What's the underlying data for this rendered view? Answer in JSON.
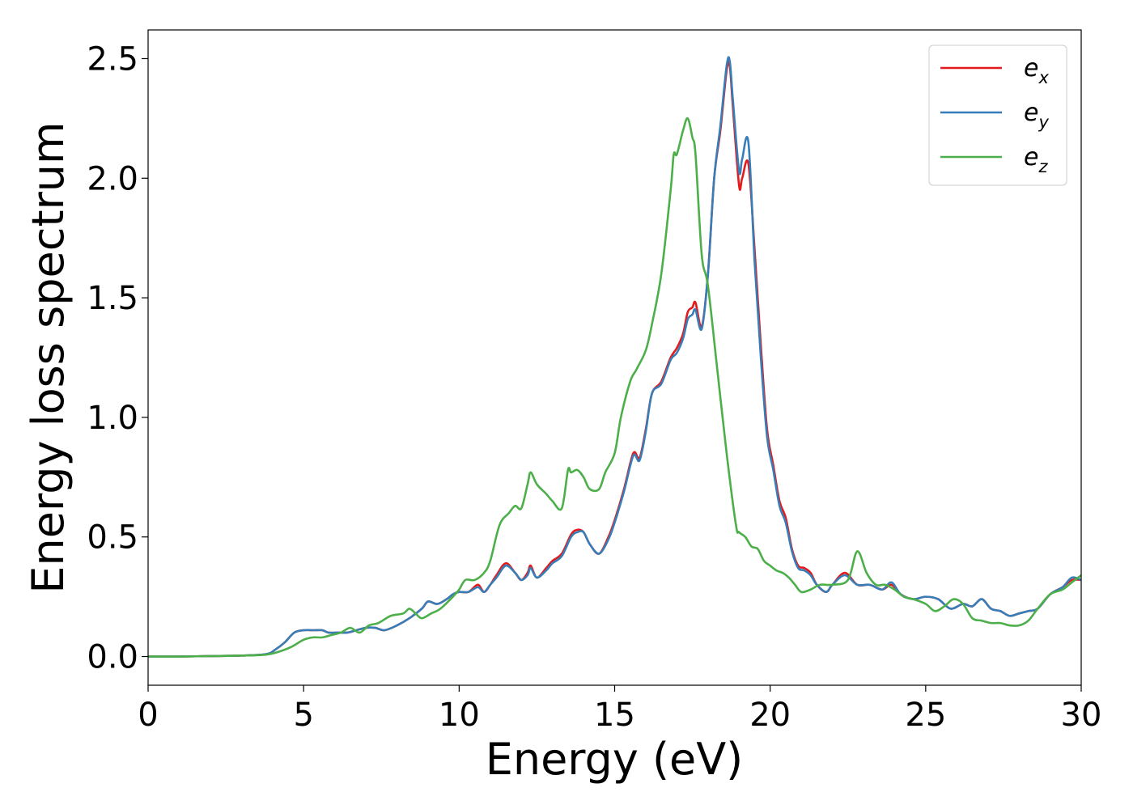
{
  "chart_data": {
    "type": "line",
    "xlabel": "Energy (eV)",
    "ylabel": "Energy loss spectrum",
    "xlim": [
      0,
      30
    ],
    "ylim": [
      -0.12,
      2.62
    ],
    "xticks": [
      0,
      5,
      10,
      15,
      20,
      25,
      30
    ],
    "yticks": [
      0.0,
      0.5,
      1.0,
      1.5,
      2.0,
      2.5
    ],
    "xtick_labels": [
      "0",
      "5",
      "10",
      "15",
      "20",
      "25",
      "30"
    ],
    "ytick_labels": [
      "0.0",
      "0.5",
      "1.0",
      "1.5",
      "2.0",
      "2.5"
    ],
    "grid": false,
    "legend_position": "top-right",
    "series": [
      {
        "name": "e_x",
        "label_main": "e",
        "label_sub": "x",
        "color": "#e41a1c",
        "x": [
          0,
          1,
          2,
          3,
          3.8,
          4.1,
          4.4,
          4.7,
          5.0,
          5.3,
          5.6,
          5.8,
          6.1,
          6.4,
          6.7,
          7.0,
          7.3,
          7.6,
          8.0,
          8.4,
          8.8,
          9.0,
          9.3,
          9.6,
          9.8,
          10.0,
          10.3,
          10.6,
          10.8,
          11.0,
          11.2,
          11.5,
          11.8,
          12.0,
          12.2,
          12.3,
          12.5,
          12.8,
          13.0,
          13.3,
          13.6,
          13.8,
          14.0,
          14.2,
          14.5,
          14.8,
          15.0,
          15.3,
          15.6,
          15.8,
          16.0,
          16.2,
          16.5,
          16.8,
          17.0,
          17.2,
          17.35,
          17.5,
          17.6,
          17.8,
          18.0,
          18.2,
          18.4,
          18.6,
          18.7,
          18.8,
          19.0,
          19.1,
          19.3,
          19.5,
          19.7,
          19.9,
          20.1,
          20.3,
          20.5,
          20.7,
          20.9,
          21.1,
          21.3,
          21.5,
          21.8,
          22.0,
          22.4,
          22.8,
          23.2,
          23.6,
          23.9,
          24.2,
          24.6,
          25.0,
          25.4,
          25.8,
          26.2,
          26.5,
          26.8,
          27.1,
          27.4,
          27.7,
          28.0,
          28.3,
          28.6,
          29.0,
          29.4,
          29.7,
          30.0
        ],
        "y": [
          0.0,
          0.0,
          0.002,
          0.004,
          0.01,
          0.03,
          0.06,
          0.1,
          0.11,
          0.11,
          0.11,
          0.1,
          0.1,
          0.1,
          0.11,
          0.12,
          0.12,
          0.11,
          0.13,
          0.16,
          0.2,
          0.23,
          0.22,
          0.24,
          0.26,
          0.27,
          0.27,
          0.3,
          0.27,
          0.3,
          0.34,
          0.39,
          0.35,
          0.32,
          0.35,
          0.38,
          0.33,
          0.37,
          0.4,
          0.43,
          0.51,
          0.53,
          0.52,
          0.47,
          0.43,
          0.5,
          0.57,
          0.7,
          0.85,
          0.83,
          0.95,
          1.1,
          1.15,
          1.25,
          1.29,
          1.35,
          1.44,
          1.46,
          1.48,
          1.38,
          1.6,
          2.0,
          2.2,
          2.45,
          2.47,
          2.3,
          1.97,
          2.0,
          2.06,
          1.7,
          1.3,
          0.95,
          0.8,
          0.65,
          0.58,
          0.45,
          0.38,
          0.37,
          0.35,
          0.3,
          0.27,
          0.3,
          0.35,
          0.3,
          0.3,
          0.28,
          0.3,
          0.26,
          0.24,
          0.25,
          0.24,
          0.2,
          0.22,
          0.21,
          0.24,
          0.2,
          0.19,
          0.17,
          0.18,
          0.19,
          0.2,
          0.26,
          0.29,
          0.32,
          0.32
        ]
      },
      {
        "name": "e_y",
        "label_main": "e",
        "label_sub": "y",
        "color": "#377eb8",
        "x": [
          0,
          1,
          2,
          3,
          3.8,
          4.1,
          4.4,
          4.7,
          5.0,
          5.3,
          5.6,
          5.8,
          6.1,
          6.4,
          6.7,
          7.0,
          7.3,
          7.6,
          8.0,
          8.4,
          8.8,
          9.0,
          9.3,
          9.6,
          9.8,
          10.0,
          10.3,
          10.6,
          10.8,
          11.0,
          11.2,
          11.5,
          11.8,
          12.0,
          12.2,
          12.3,
          12.5,
          12.8,
          13.0,
          13.3,
          13.6,
          13.8,
          14.0,
          14.2,
          14.5,
          14.8,
          15.0,
          15.3,
          15.6,
          15.8,
          16.0,
          16.2,
          16.5,
          16.8,
          17.0,
          17.2,
          17.35,
          17.5,
          17.6,
          17.8,
          18.0,
          18.2,
          18.4,
          18.6,
          18.7,
          18.8,
          19.0,
          19.1,
          19.3,
          19.5,
          19.7,
          19.9,
          20.1,
          20.3,
          20.5,
          20.7,
          20.9,
          21.1,
          21.3,
          21.5,
          21.8,
          22.0,
          22.4,
          22.8,
          23.2,
          23.6,
          23.9,
          24.2,
          24.6,
          25.0,
          25.4,
          25.8,
          26.2,
          26.5,
          26.8,
          27.1,
          27.4,
          27.7,
          28.0,
          28.3,
          28.6,
          29.0,
          29.4,
          29.7,
          30.0
        ],
        "y": [
          0.0,
          0.0,
          0.002,
          0.004,
          0.01,
          0.03,
          0.06,
          0.1,
          0.11,
          0.11,
          0.11,
          0.1,
          0.1,
          0.1,
          0.11,
          0.12,
          0.12,
          0.11,
          0.13,
          0.16,
          0.2,
          0.23,
          0.22,
          0.24,
          0.26,
          0.27,
          0.27,
          0.29,
          0.27,
          0.3,
          0.33,
          0.38,
          0.35,
          0.32,
          0.34,
          0.37,
          0.33,
          0.36,
          0.39,
          0.42,
          0.5,
          0.52,
          0.52,
          0.47,
          0.43,
          0.49,
          0.56,
          0.69,
          0.84,
          0.82,
          0.94,
          1.1,
          1.14,
          1.24,
          1.27,
          1.33,
          1.41,
          1.43,
          1.45,
          1.37,
          1.6,
          2.0,
          2.22,
          2.47,
          2.49,
          2.33,
          2.03,
          2.08,
          2.15,
          1.65,
          1.25,
          0.92,
          0.78,
          0.63,
          0.56,
          0.44,
          0.37,
          0.36,
          0.34,
          0.3,
          0.27,
          0.3,
          0.34,
          0.3,
          0.3,
          0.28,
          0.31,
          0.26,
          0.24,
          0.25,
          0.24,
          0.2,
          0.22,
          0.21,
          0.24,
          0.2,
          0.19,
          0.17,
          0.18,
          0.19,
          0.2,
          0.26,
          0.29,
          0.33,
          0.32
        ]
      },
      {
        "name": "e_z",
        "label_main": "e",
        "label_sub": "z",
        "color": "#4daf4a",
        "x": [
          0,
          1,
          2,
          3,
          3.8,
          4.2,
          4.6,
          5.0,
          5.3,
          5.6,
          5.9,
          6.2,
          6.5,
          6.8,
          7.1,
          7.4,
          7.8,
          8.2,
          8.4,
          8.6,
          8.8,
          9.1,
          9.4,
          9.8,
          10.0,
          10.2,
          10.5,
          10.8,
          11.0,
          11.3,
          11.6,
          11.8,
          12.0,
          12.2,
          12.3,
          12.5,
          12.8,
          13.0,
          13.3,
          13.5,
          13.6,
          13.8,
          14.0,
          14.2,
          14.5,
          14.7,
          15.0,
          15.2,
          15.5,
          15.7,
          16.0,
          16.2,
          16.5,
          16.8,
          16.9,
          17.0,
          17.2,
          17.35,
          17.5,
          17.6,
          17.8,
          18.0,
          18.3,
          18.6,
          18.9,
          19.0,
          19.2,
          19.4,
          19.6,
          19.8,
          20.0,
          20.2,
          20.4,
          20.6,
          20.8,
          21.0,
          21.3,
          21.6,
          22.0,
          22.5,
          22.8,
          23.1,
          23.4,
          23.7,
          24.0,
          24.3,
          24.6,
          25.0,
          25.3,
          25.6,
          25.9,
          26.2,
          26.5,
          26.8,
          27.1,
          27.4,
          27.7,
          28.0,
          28.3,
          28.6,
          29.0,
          29.4,
          29.7,
          30.0
        ],
        "y": [
          0.0,
          0.0,
          0.002,
          0.004,
          0.008,
          0.02,
          0.04,
          0.07,
          0.08,
          0.08,
          0.09,
          0.1,
          0.12,
          0.1,
          0.13,
          0.14,
          0.17,
          0.18,
          0.2,
          0.18,
          0.16,
          0.18,
          0.2,
          0.25,
          0.28,
          0.32,
          0.32,
          0.35,
          0.4,
          0.55,
          0.6,
          0.63,
          0.62,
          0.72,
          0.77,
          0.72,
          0.68,
          0.65,
          0.62,
          0.78,
          0.77,
          0.78,
          0.75,
          0.7,
          0.7,
          0.77,
          0.85,
          1.0,
          1.15,
          1.2,
          1.28,
          1.39,
          1.6,
          1.95,
          2.1,
          2.1,
          2.2,
          2.25,
          2.17,
          2.1,
          1.68,
          1.55,
          1.2,
          0.85,
          0.55,
          0.52,
          0.5,
          0.46,
          0.45,
          0.4,
          0.38,
          0.36,
          0.35,
          0.33,
          0.3,
          0.27,
          0.28,
          0.3,
          0.3,
          0.32,
          0.44,
          0.35,
          0.3,
          0.3,
          0.28,
          0.25,
          0.24,
          0.22,
          0.19,
          0.21,
          0.24,
          0.22,
          0.16,
          0.15,
          0.14,
          0.14,
          0.13,
          0.13,
          0.15,
          0.2,
          0.26,
          0.28,
          0.31,
          0.34
        ]
      }
    ]
  }
}
